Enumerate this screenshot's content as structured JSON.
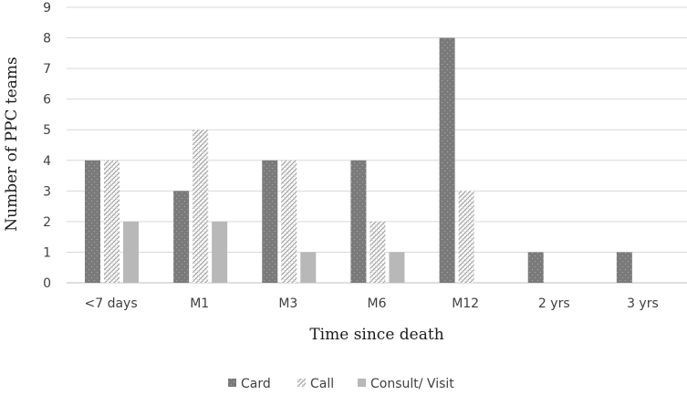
{
  "chart_data": {
    "type": "bar",
    "title": "",
    "xlabel": "Time since death",
    "ylabel": "Number of PPC teams",
    "categories": [
      "<7 days",
      "M1",
      "M3",
      "M6",
      "M12",
      "2 yrs",
      "3 yrs"
    ],
    "series": [
      {
        "name": "Card",
        "values": [
          4,
          3,
          4,
          4,
          8,
          1,
          1
        ],
        "color": "#7a7a7a",
        "pattern": "dots"
      },
      {
        "name": "Call",
        "values": [
          4,
          5,
          4,
          2,
          3,
          0,
          0
        ],
        "color": "#bfbfbf",
        "pattern": "crosshatch"
      },
      {
        "name": "Consult/ Visit",
        "values": [
          2,
          2,
          1,
          1,
          0,
          0,
          0
        ],
        "color": "#b8b8b8",
        "pattern": "solid"
      }
    ],
    "ylim": [
      0,
      9
    ],
    "yticks": [
      0,
      1,
      2,
      3,
      4,
      5,
      6,
      7,
      8,
      9
    ],
    "grid": true,
    "legend_position": "bottom"
  }
}
